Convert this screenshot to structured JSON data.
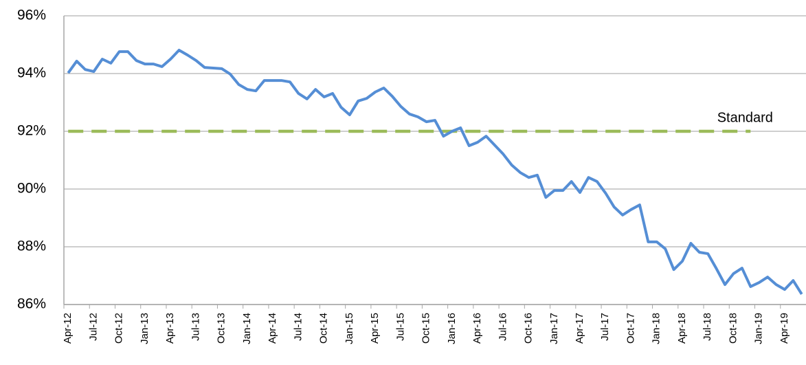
{
  "chart_data": {
    "type": "line",
    "categories": [
      "Apr-12",
      null,
      null,
      "Jul-12",
      null,
      null,
      "Oct-12",
      null,
      null,
      "Jan-13",
      null,
      null,
      "Apr-13",
      null,
      null,
      "Jul-13",
      null,
      null,
      "Oct-13",
      null,
      null,
      "Jan-14",
      null,
      null,
      "Apr-14",
      null,
      null,
      "Jul-14",
      null,
      null,
      "Oct-14",
      null,
      null,
      "Jan-15",
      null,
      null,
      "Apr-15",
      null,
      null,
      "Jul-15",
      null,
      null,
      "Oct-15",
      null,
      null,
      "Jan-16",
      null,
      null,
      "Apr-16",
      null,
      null,
      "Jul-16",
      null,
      null,
      "Oct-16",
      null,
      null,
      "Jan-17",
      null,
      null,
      "Apr-17",
      null,
      null,
      "Jul-17",
      null,
      null,
      "Oct-17",
      null,
      null,
      "Jan-18",
      null,
      null,
      "Apr-18",
      null,
      null,
      "Jul-18",
      null,
      null,
      "Oct-18",
      null,
      null,
      "Jan-19",
      null,
      null,
      "Apr-19",
      null,
      null
    ],
    "series": [
      {
        "color": "#558ed5",
        "values": [
          94.02,
          94.43,
          94.14,
          94.07,
          94.5,
          94.36,
          94.76,
          94.76,
          94.45,
          94.33,
          94.33,
          94.24,
          94.5,
          94.81,
          94.64,
          94.45,
          94.21,
          94.19,
          94.17,
          93.98,
          93.62,
          93.45,
          93.4,
          93.76,
          93.76,
          93.76,
          93.71,
          93.31,
          93.12,
          93.45,
          93.19,
          93.31,
          92.83,
          92.57,
          93.05,
          93.14,
          93.36,
          93.5,
          93.21,
          92.86,
          92.6,
          92.5,
          92.33,
          92.38,
          91.83,
          92.0,
          92.12,
          91.5,
          91.62,
          91.83,
          91.52,
          91.21,
          90.83,
          90.57,
          90.4,
          90.48,
          89.71,
          89.95,
          89.95,
          90.26,
          89.88,
          90.4,
          90.26,
          89.86,
          89.38,
          89.1,
          89.29,
          89.45,
          88.17,
          88.17,
          87.93,
          87.21,
          87.5,
          88.12,
          87.81,
          87.76,
          87.24,
          86.69,
          87.07,
          87.26,
          86.62,
          86.76,
          86.95,
          86.69,
          86.52,
          86.83,
          86.36
        ]
      },
      {
        "name": "Standard",
        "color": "#9bbb59",
        "dashed": true,
        "values": [
          92,
          92,
          92,
          92,
          92,
          92,
          92,
          92,
          92,
          92,
          92,
          92,
          92,
          92,
          92,
          92,
          92,
          92,
          92,
          92,
          92,
          92,
          92,
          92,
          92,
          92,
          92,
          92,
          92,
          92,
          92,
          92,
          92,
          92,
          92,
          92,
          92,
          92,
          92,
          92,
          92,
          92,
          92,
          92,
          92,
          92,
          92,
          92,
          92,
          92,
          92,
          92,
          92,
          92,
          92,
          92,
          92,
          92,
          92,
          92,
          92,
          92,
          92,
          92,
          92,
          92,
          92,
          92,
          92,
          92,
          92,
          92,
          92,
          92,
          92,
          92,
          92,
          92,
          92,
          92,
          92,
          null,
          null,
          null,
          null,
          null,
          null
        ]
      }
    ],
    "ylim": [
      86,
      96
    ],
    "yticks": [
      {
        "value": 86,
        "label": "86%"
      },
      {
        "value": 88,
        "label": "88%"
      },
      {
        "value": 90,
        "label": "90%"
      },
      {
        "value": 92,
        "label": "92%"
      },
      {
        "value": 94,
        "label": "94%"
      },
      {
        "value": 96,
        "label": "96%"
      }
    ],
    "grid": true
  }
}
